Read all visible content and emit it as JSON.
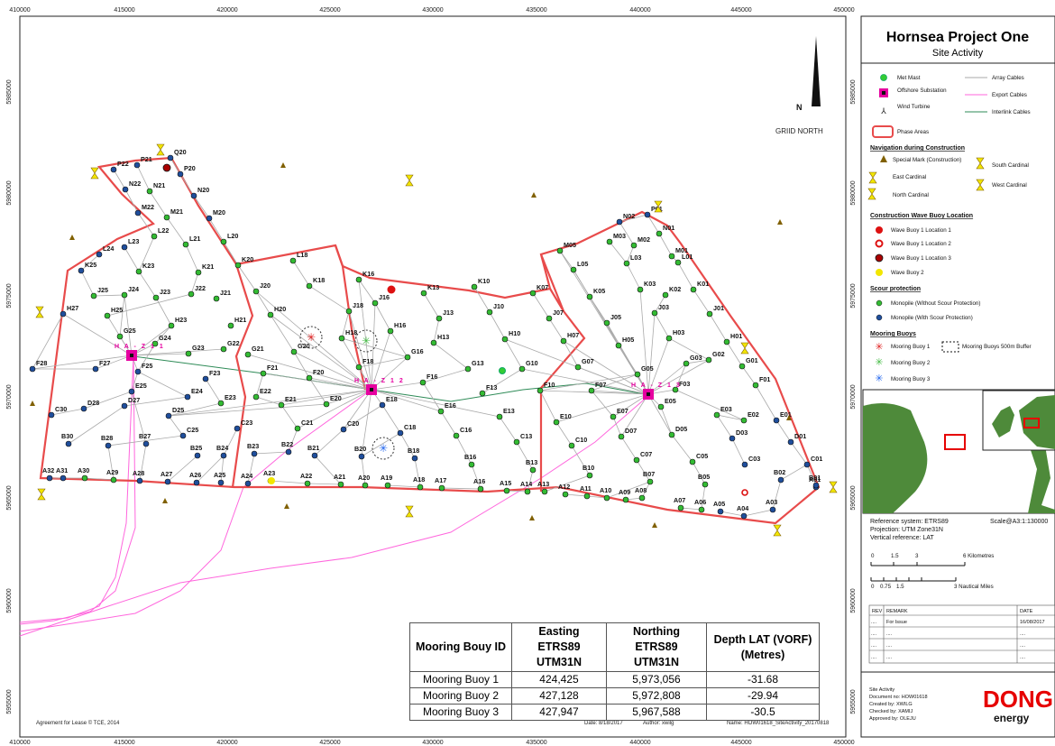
{
  "title": "Hornsea Project One",
  "subtitle": "Site Activity",
  "north": {
    "letter": "N",
    "label": "GRIID NORTH"
  },
  "axes": {
    "eastings": [
      "410000",
      "415000",
      "420000",
      "425000",
      "430000",
      "435000",
      "440000",
      "445000",
      "450000"
    ],
    "northings": [
      "5985000",
      "5980000",
      "5975000",
      "5970000",
      "5965000",
      "5960000",
      "5955000"
    ]
  },
  "substations": [
    {
      "label": "H A - Z 1 1"
    },
    {
      "label": "H A - Z 1 2"
    },
    {
      "label": "H A - Z 1 3"
    }
  ],
  "turbines": [
    "A01",
    "A03",
    "A04",
    "A05",
    "A06",
    "A07",
    "A08",
    "A09",
    "A10",
    "A11",
    "A12",
    "A13",
    "A14",
    "A15",
    "A16",
    "A17",
    "A18",
    "A19",
    "A20",
    "A21",
    "A22",
    "A23",
    "A24",
    "A25",
    "A26",
    "A27",
    "A28",
    "A29",
    "A30",
    "A31",
    "A32",
    "B01",
    "B02",
    "B05",
    "B07",
    "B10",
    "B13",
    "B16",
    "B18",
    "B20",
    "B21",
    "B22",
    "B23",
    "B24",
    "B25",
    "B27",
    "B28",
    "B30",
    "C01",
    "C03",
    "C05",
    "C07",
    "C10",
    "C13",
    "C16",
    "C18",
    "C20",
    "C21",
    "C23",
    "C25",
    "C30",
    "D01",
    "D03",
    "D05",
    "D07",
    "D25",
    "D27",
    "D28",
    "E01",
    "E02",
    "E03",
    "E05",
    "E07",
    "E10",
    "E13",
    "E16",
    "E18",
    "E20",
    "E21",
    "E22",
    "E23",
    "E24",
    "E25",
    "F01",
    "F03",
    "F07",
    "F10",
    "F13",
    "F16",
    "F18",
    "F20",
    "F21",
    "F23",
    "F25",
    "F27",
    "F28",
    "G01",
    "G02",
    "G03",
    "G05",
    "G07",
    "G10",
    "G13",
    "G16",
    "G20",
    "G21",
    "G22",
    "G23",
    "G24",
    "G25",
    "H01",
    "H03",
    "H05",
    "H07",
    "H10",
    "H13",
    "H16",
    "H18",
    "H20",
    "H21",
    "H23",
    "H25",
    "H27",
    "J01",
    "J03",
    "J05",
    "J07",
    "J10",
    "J13",
    "J16",
    "J18",
    "J20",
    "J21",
    "J22",
    "J23",
    "J24",
    "J25",
    "K01",
    "K02",
    "K03",
    "K05",
    "K07",
    "K10",
    "K13",
    "K16",
    "K18",
    "K20",
    "K21",
    "K23",
    "K25",
    "L01",
    "L03",
    "L05",
    "L18",
    "L20",
    "L21",
    "L22",
    "L23",
    "L24",
    "M01",
    "M02",
    "M03",
    "M05",
    "M20",
    "M21",
    "M22",
    "N01",
    "N02",
    "N20",
    "N21",
    "N22",
    "P01",
    "P20",
    "P21",
    "P22",
    "Q20"
  ],
  "legend": {
    "items": [
      "Met Mast",
      "Offshore Substation",
      "Wind Turbine",
      "Phase Areas",
      "Array Cables",
      "Export Cables",
      "Interlink Cables"
    ],
    "nav_title": "Navigation during Construction",
    "nav": [
      "Special Mark (Construction)",
      "East Cardinal",
      "North Cardinal",
      "South Cardinal",
      "West Cardinal"
    ],
    "wave_title": "Construction Wave Buoy Location",
    "wave": [
      "Wave Buoy 1 Location 1",
      "Wave Buoy 1 Location 2",
      "Wave Buoy 1 Location 3",
      "Wave Buoy 2"
    ],
    "scour_title": "Scour protection",
    "scour": [
      "Monopile (Without Scour Protection)",
      "Monopile (With Scour Protection)"
    ],
    "mooring_title": "Mooring Buoys",
    "mooring": [
      "Mooring Buoy 1",
      "Mooring Buoy 2",
      "Mooring Buoy 3",
      "Mooring Buoys 500m Buffer"
    ]
  },
  "reference": {
    "system": "Reference system: ETRS89",
    "projection": "Projection: UTM Zone31N",
    "vertical": "Vertical reference: LAT",
    "scale": "Scale@A3:1:130000",
    "km_ticks": [
      "0",
      "1.5",
      "3",
      "6 Kilometres"
    ],
    "nm_ticks": [
      "0",
      "0.75",
      "1.5",
      "3 Nautical Miles"
    ]
  },
  "revisions": {
    "headers": [
      "REV",
      "REMARK",
      "DATE"
    ],
    "rows": [
      [
        "....",
        "For Issue",
        "16/08/2017"
      ],
      [
        "....",
        "....",
        "...."
      ],
      [
        "....",
        "....",
        "...."
      ],
      [
        "....",
        "....",
        "...."
      ]
    ]
  },
  "doc": {
    "lines": [
      "Site Activity",
      "Document no: HOW01618",
      "Created by: XWILG",
      "Checked by: XAMIJ",
      "Approved by: OLEJU"
    ],
    "logo_top": "DONG",
    "logo_bottom": "energy"
  },
  "footer": {
    "license": "Agreement for Lease © TCE, 2014",
    "date": "Date: 8/18/2017",
    "author": "Author: xwilg",
    "name": "Name: HOW01618_SiteActivity_20170818"
  },
  "table": {
    "headers": [
      "Mooring Bouy ID",
      "Easting ETRS89 UTM31N",
      "Northing ETRS89 UTM31N",
      "Depth LAT (VORF) (Metres)"
    ],
    "rows": [
      [
        "Mooring Buoy 1",
        "424,425",
        "5,973,056",
        "-31.68"
      ],
      [
        "Mooring Buoy 2",
        "427,128",
        "5,972,808",
        "-29.94"
      ],
      [
        "Mooring Buoy 3",
        "427,947",
        "5,967,588",
        "-30.5"
      ]
    ]
  },
  "colors": {
    "phase": "#e84b4b",
    "export": "#ff66dd",
    "interlink": "#2e8b57",
    "array": "#aaaaaa",
    "with_scour": "#1f4e9c",
    "without_scour": "#33bb33",
    "substation": "#e600a0"
  }
}
